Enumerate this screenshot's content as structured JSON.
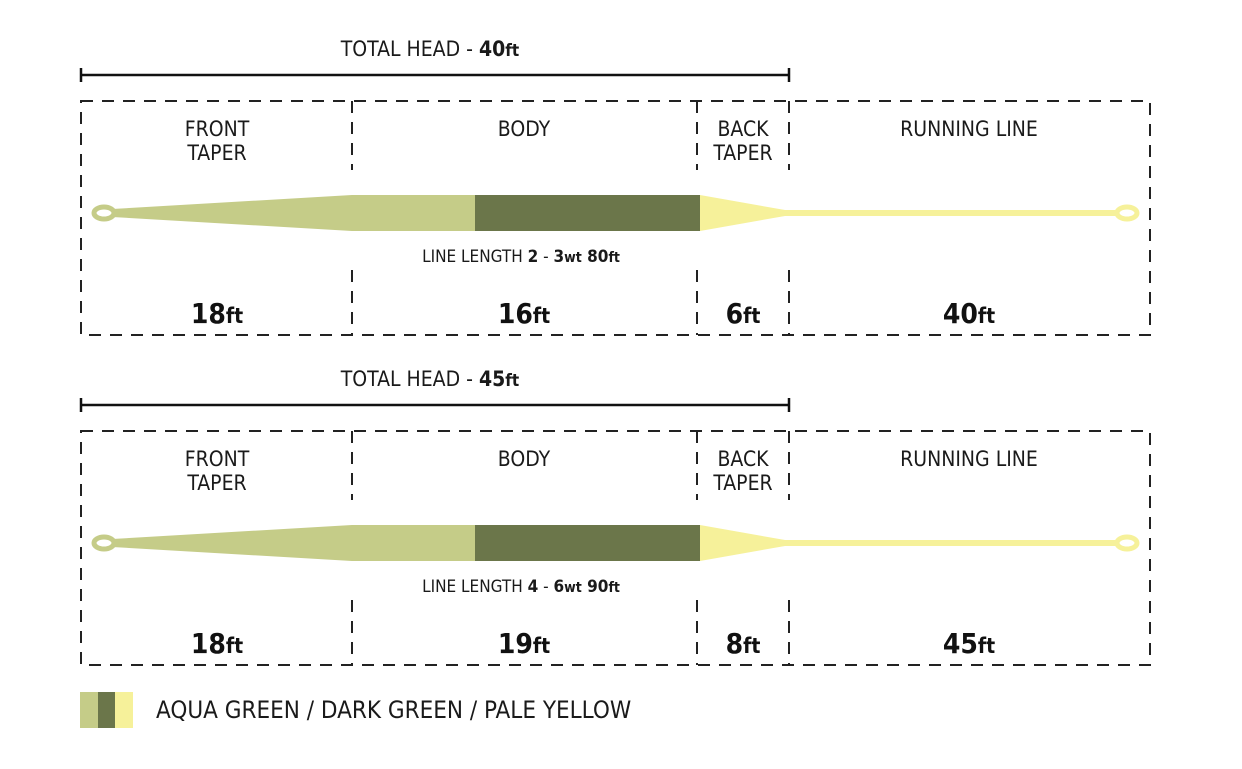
{
  "colors": {
    "aqua_green": "#c5cc88",
    "dark_green": "#6b764a",
    "pale_yellow": "#f6f19a",
    "outline": "#222222"
  },
  "sections": [
    "FRONT",
    "TAPER",
    "BODY",
    "BACK",
    "TAPER",
    "RUNNING LINE"
  ],
  "diagrams": [
    {
      "total_head": {
        "label": "TOTAL HEAD - ",
        "value": "40",
        "unit": "ft"
      },
      "line_length": {
        "label": "LINE LENGTH ",
        "weight_from": "2",
        "sep": " - ",
        "weight_to": "3",
        "wt": "wt",
        "length": " 80",
        "unit": "ft"
      },
      "lengths": [
        {
          "value": "18",
          "unit": "ft"
        },
        {
          "value": "16",
          "unit": "ft"
        },
        {
          "value": "6",
          "unit": "ft"
        },
        {
          "value": "40",
          "unit": "ft"
        }
      ]
    },
    {
      "total_head": {
        "label": "TOTAL HEAD - ",
        "value": "45",
        "unit": "ft"
      },
      "line_length": {
        "label": "LINE LENGTH ",
        "weight_from": "4",
        "sep": " - ",
        "weight_to": "6",
        "wt": "wt",
        "length": " 90",
        "unit": "ft"
      },
      "lengths": [
        {
          "value": "18",
          "unit": "ft"
        },
        {
          "value": "19",
          "unit": "ft"
        },
        {
          "value": "8",
          "unit": "ft"
        },
        {
          "value": "45",
          "unit": "ft"
        }
      ]
    }
  ],
  "legend": {
    "label": "AQUA GREEN / DARK GREEN / PALE YELLOW"
  }
}
